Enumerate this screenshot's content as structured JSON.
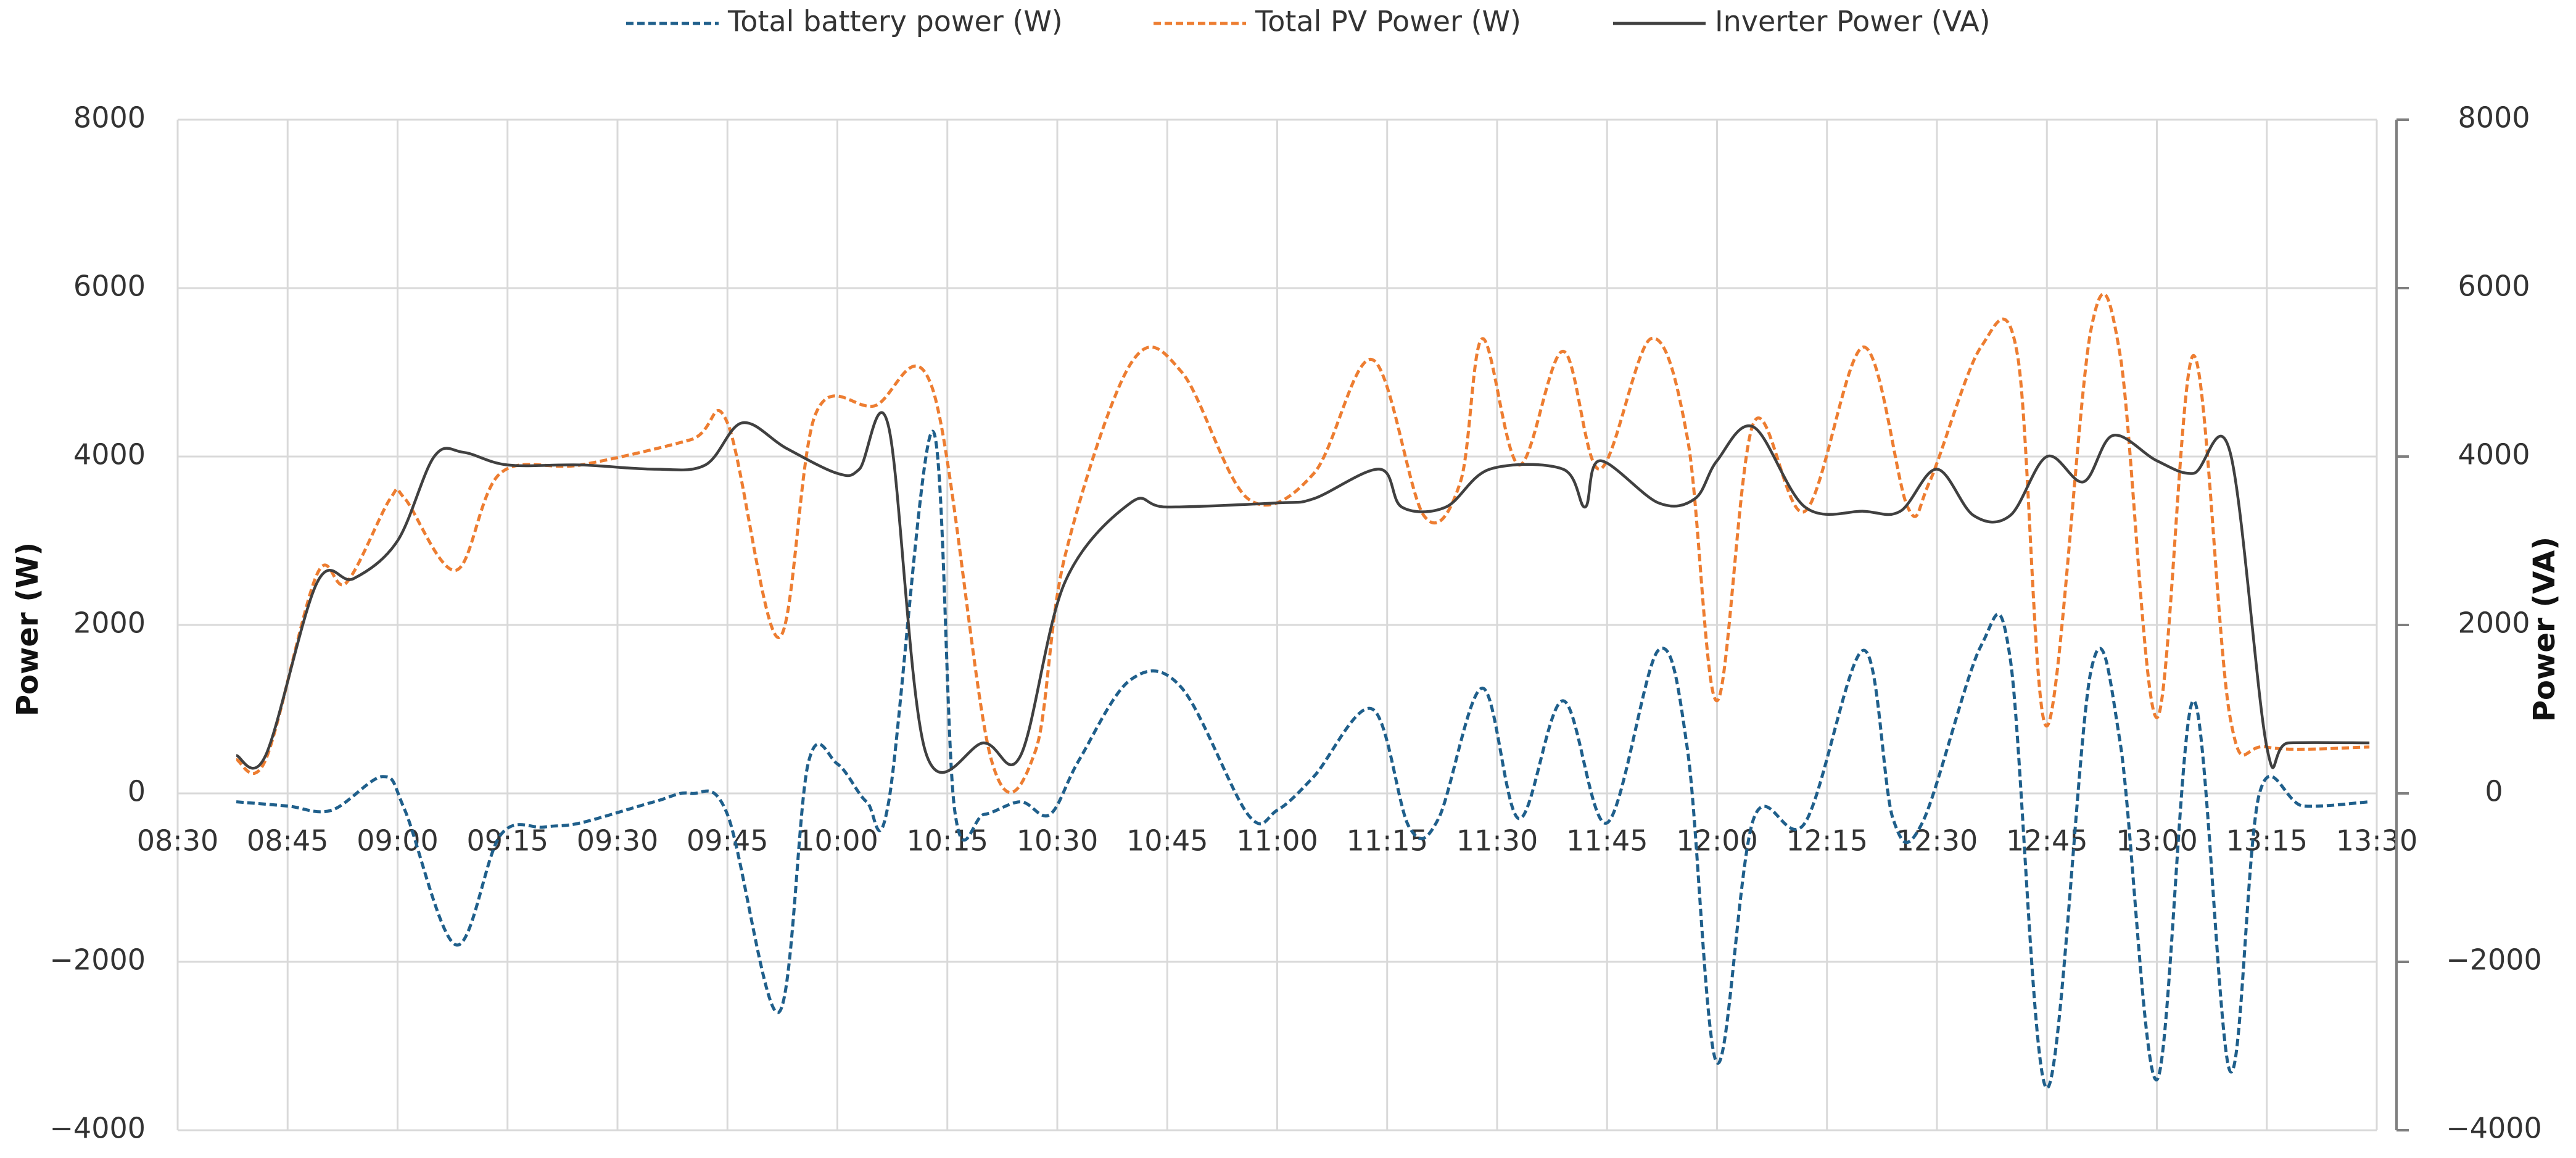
{
  "chart_data": {
    "type": "line",
    "y_label": "Power (W)",
    "y2_label": "Power (VA)",
    "xlim": [
      "08:30",
      "13:30"
    ],
    "xticks": [
      "08:30",
      "08:45",
      "09:00",
      "09:15",
      "09:30",
      "09:45",
      "10:00",
      "10:15",
      "10:30",
      "10:45",
      "11:00",
      "11:15",
      "11:30",
      "11:45",
      "12:00",
      "12:15",
      "12:30",
      "12:45",
      "13:00",
      "13:15",
      "13:30"
    ],
    "ylim": [
      -4000,
      8000
    ],
    "yticks": [
      {
        "value": -4000,
        "label": "−4000"
      },
      {
        "value": -2000,
        "label": "−2000"
      },
      0,
      2000,
      4000,
      6000,
      8000
    ],
    "y2lim": [
      -4000,
      8000
    ],
    "y2ticks": [
      {
        "value": -4000,
        "label": "−4000"
      },
      {
        "value": -2000,
        "label": "−2000"
      },
      0,
      2000,
      4000,
      6000,
      8000
    ],
    "grid": true,
    "legend": "top",
    "series": [
      {
        "name": "Total battery power (W)",
        "color": "#1f5f8b",
        "dashed": true,
        "x": [
          "08:38",
          "08:45",
          "08:51",
          "08:58",
          "09:01",
          "09:08",
          "09:14",
          "09:20",
          "09:25",
          "09:35",
          "09:40",
          "09:45",
          "09:52",
          "09:56",
          "10:00",
          "10:04",
          "10:07",
          "10:13",
          "10:16",
          "10:20",
          "10:25",
          "10:29",
          "10:33",
          "10:40",
          "10:47",
          "10:56",
          "11:00",
          "11:05",
          "11:13",
          "11:18",
          "11:22",
          "11:28",
          "11:33",
          "11:39",
          "11:45",
          "11:52",
          "11:56",
          "12:00",
          "12:05",
          "12:12",
          "12:20",
          "12:24",
          "12:28",
          "12:36",
          "12:40",
          "12:45",
          "12:51",
          "12:55",
          "13:00",
          "13:05",
          "13:10",
          "13:14",
          "13:20",
          "13:29"
        ],
        "values": [
          -100,
          -150,
          -200,
          200,
          -200,
          -1800,
          -500,
          -400,
          -350,
          -100,
          0,
          -250,
          -2600,
          350,
          350,
          -100,
          -100,
          4300,
          -200,
          -250,
          -100,
          -250,
          400,
          1350,
          1250,
          -250,
          -200,
          200,
          1000,
          -400,
          -300,
          1250,
          -300,
          1100,
          -350,
          1700,
          500,
          -3200,
          -300,
          -350,
          1700,
          -300,
          -350,
          1750,
          1600,
          -3500,
          1450,
          600,
          -3400,
          1100,
          -3300,
          0,
          -150,
          -100
        ]
      },
      {
        "name": "Total PV Power (W)",
        "color": "#ed7d31",
        "dashed": true,
        "x": [
          "08:38",
          "08:42",
          "08:49",
          "08:53",
          "08:59",
          "09:01",
          "09:08",
          "09:14",
          "09:25",
          "09:40",
          "09:45",
          "09:52",
          "09:57",
          "10:05",
          "10:13",
          "10:21",
          "10:27",
          "10:31",
          "10:40",
          "10:47",
          "10:56",
          "11:05",
          "11:13",
          "11:20",
          "11:25",
          "11:28",
          "11:33",
          "11:39",
          "11:44",
          "11:51",
          "11:56",
          "12:00",
          "12:05",
          "12:12",
          "12:20",
          "12:26",
          "12:29",
          "12:36",
          "12:41",
          "12:45",
          "12:51",
          "12:55",
          "13:00",
          "13:05",
          "13:10",
          "13:15",
          "13:29"
        ],
        "values": [
          400,
          400,
          2600,
          2500,
          3500,
          3500,
          2650,
          3800,
          3900,
          4200,
          4400,
          1850,
          4500,
          4600,
          4800,
          400,
          500,
          2800,
          5100,
          5000,
          3500,
          3800,
          5150,
          3300,
          3700,
          5400,
          3900,
          5250,
          3850,
          5400,
          4200,
          1100,
          4400,
          3350,
          5300,
          3400,
          3700,
          5300,
          5200,
          800,
          5500,
          5200,
          900,
          5200,
          900,
          550,
          550
        ]
      },
      {
        "name": "Inverter Power (VA)",
        "color": "#404040",
        "dashed": false,
        "axis": "y2",
        "x": [
          "08:38",
          "08:42",
          "08:49",
          "08:54",
          "09:00",
          "09:05",
          "09:09",
          "09:15",
          "09:25",
          "09:35",
          "09:42",
          "09:47",
          "09:53",
          "10:00",
          "10:03",
          "10:07",
          "10:12",
          "10:20",
          "10:25",
          "10:31",
          "10:40",
          "10:45",
          "11:00",
          "11:05",
          "11:14",
          "11:17",
          "11:23",
          "11:29",
          "11:39",
          "11:42",
          "11:44",
          "11:52",
          "11:57",
          "12:00",
          "12:05",
          "12:12",
          "12:20",
          "12:25",
          "12:30",
          "12:35",
          "12:40",
          "12:45",
          "12:50",
          "12:54",
          "13:00",
          "13:05",
          "13:10",
          "13:15",
          "13:18",
          "13:29"
        ],
        "values": [
          450,
          450,
          2500,
          2550,
          3000,
          4000,
          4050,
          3900,
          3900,
          3850,
          3900,
          4400,
          4100,
          3800,
          3850,
          4350,
          500,
          600,
          450,
          2500,
          3450,
          3400,
          3450,
          3500,
          3850,
          3400,
          3400,
          3850,
          3850,
          3400,
          3950,
          3450,
          3500,
          3950,
          4350,
          3400,
          3350,
          3350,
          3850,
          3300,
          3300,
          4000,
          3700,
          4250,
          3950,
          3800,
          4050,
          550,
          600,
          600
        ]
      }
    ]
  }
}
